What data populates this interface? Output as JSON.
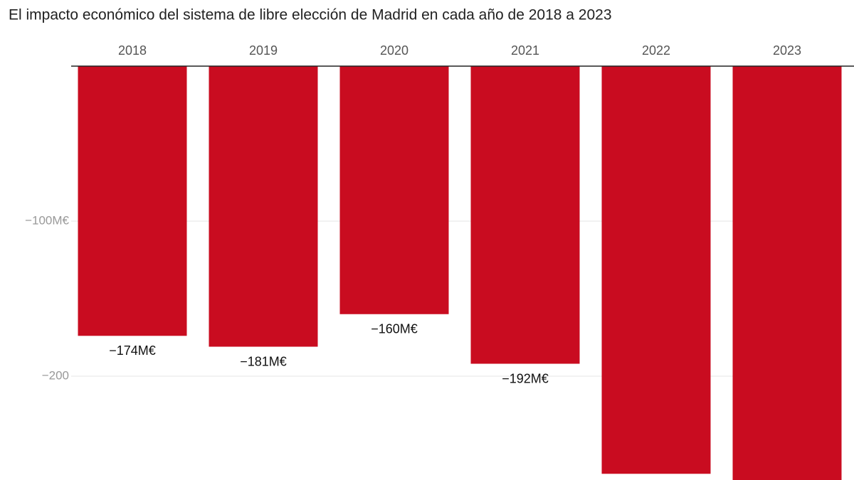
{
  "chart_data": {
    "type": "bar",
    "title": "El impacto económico del sistema de libre elección de Madrid en cada año de 2018 a 2023",
    "categories": [
      "2018",
      "2019",
      "2020",
      "2021",
      "2022",
      "2023"
    ],
    "values": [
      -174,
      -181,
      -160,
      -192,
      -263,
      -270
    ],
    "value_labels": [
      "−174M€",
      "−181M€",
      "−160M€",
      "−192M€",
      null,
      null
    ],
    "color": "#c90c20",
    "ylim": [
      -267,
      0
    ],
    "yticks": [
      {
        "value": -100,
        "label": "−100M€"
      },
      {
        "value": -200,
        "label": "−200"
      }
    ],
    "grid": true
  }
}
